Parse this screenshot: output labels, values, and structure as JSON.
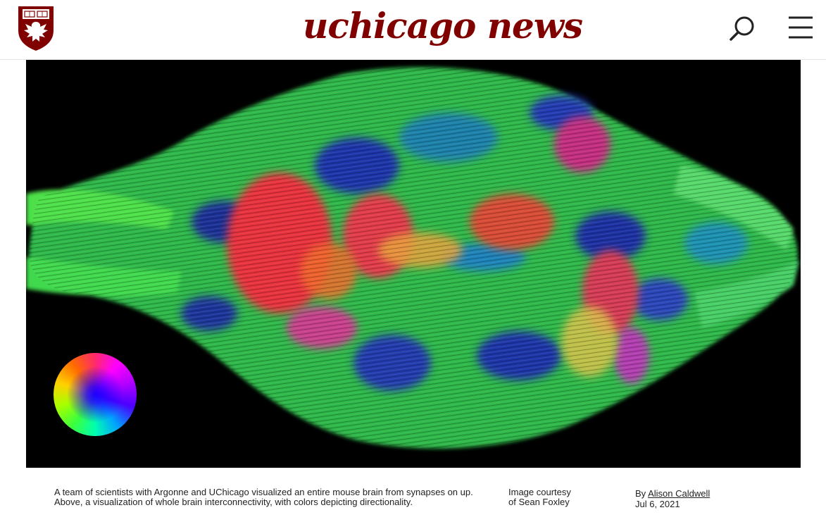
{
  "header": {
    "site_title": "uchicago news",
    "crest_icon": "university-crest-icon",
    "search_icon": "search-icon",
    "menu_icon": "hamburger-menu-icon",
    "brand_color": "#800000"
  },
  "hero": {
    "image": "mouse-brain-connectivity-visualization",
    "legend": "direction-color-wheel"
  },
  "caption": {
    "text": "A team of scientists with Argonne and UChicago visualized an entire mouse brain from synapses on up. Above, a visualization of whole brain interconnectivity, with colors depicting directionality.",
    "credit_line1": "Image courtesy",
    "credit_line2": "of Sean Foxley"
  },
  "byline": {
    "prefix": "By",
    "author": "Alison Caldwell",
    "date": "Jul 6, 2021"
  }
}
